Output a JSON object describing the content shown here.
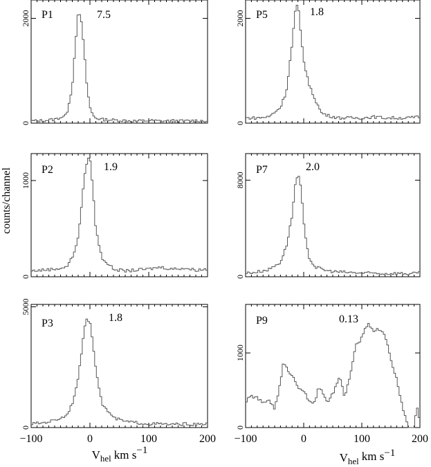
{
  "figure": {
    "ylabel": "counts/channel",
    "xlabel_main": "V",
    "xlabel_sub": "hel",
    "xlabel_units": "km s",
    "xlabel_exp": "−1"
  },
  "chart_data": [
    {
      "type": "line",
      "panel": "P1",
      "annotation": "7.5",
      "xlim": [
        -100,
        200
      ],
      "ylim": [
        0,
        2350
      ],
      "ytick_labels": [
        "0",
        "2000"
      ],
      "yticks": [
        0,
        2000
      ],
      "x": [
        -100,
        -80,
        -60,
        -40,
        -30,
        -25,
        -20,
        -15,
        -10,
        -5,
        0,
        5,
        10,
        20,
        40,
        60,
        80,
        100,
        120,
        140,
        160,
        180,
        200
      ],
      "y": [
        40,
        50,
        70,
        150,
        700,
        1500,
        2100,
        2000,
        1400,
        700,
        300,
        150,
        100,
        70,
        60,
        50,
        40,
        50,
        40,
        45,
        40,
        50,
        40
      ]
    },
    {
      "type": "line",
      "panel": "P5",
      "annotation": "1.8",
      "xlim": [
        -100,
        200
      ],
      "ylim": [
        0,
        2350
      ],
      "ytick_labels": [
        "0",
        "2000"
      ],
      "yticks": [
        0,
        2000
      ],
      "x": [
        -100,
        -80,
        -60,
        -40,
        -30,
        -20,
        -15,
        -10,
        -5,
        0,
        10,
        20,
        30,
        40,
        60,
        80,
        100,
        120,
        140,
        160,
        180,
        200
      ],
      "y": [
        100,
        100,
        120,
        300,
        600,
        1500,
        2100,
        2300,
        1700,
        1200,
        700,
        450,
        200,
        150,
        100,
        100,
        100,
        120,
        100,
        100,
        100,
        120
      ]
    },
    {
      "type": "line",
      "panel": "P2",
      "annotation": "1.9",
      "xlim": [
        -100,
        200
      ],
      "ylim": [
        0,
        1280
      ],
      "ytick_labels": [
        "0",
        "1000"
      ],
      "yticks": [
        0,
        1000
      ],
      "x": [
        -100,
        -80,
        -60,
        -40,
        -30,
        -20,
        -15,
        -10,
        -5,
        0,
        5,
        10,
        20,
        40,
        60,
        80,
        100,
        120,
        140,
        160,
        180,
        200
      ],
      "y": [
        60,
        70,
        80,
        100,
        200,
        400,
        700,
        1000,
        1200,
        1250,
        900,
        500,
        200,
        80,
        60,
        70,
        80,
        100,
        80,
        90,
        70,
        80
      ]
    },
    {
      "type": "line",
      "panel": "P7",
      "annotation": "2.0",
      "xlim": [
        -100,
        200
      ],
      "ylim": [
        0,
        10200
      ],
      "ytick_labels": [
        "0",
        "8000"
      ],
      "yticks": [
        0,
        8000
      ],
      "x": [
        -100,
        -80,
        -60,
        -40,
        -30,
        -20,
        -15,
        -10,
        -5,
        0,
        5,
        10,
        20,
        40,
        60,
        80,
        100,
        120,
        140,
        160,
        180,
        200
      ],
      "y": [
        300,
        400,
        600,
        1200,
        2500,
        5000,
        7500,
        8500,
        7500,
        4500,
        2500,
        1500,
        800,
        500,
        400,
        350,
        300,
        300,
        250,
        300,
        250,
        300
      ]
    },
    {
      "type": "line",
      "panel": "P3",
      "annotation": "1.8",
      "xlim": [
        -100,
        200
      ],
      "ylim": [
        0,
        5100
      ],
      "ytick_labels": [
        "0",
        "5000"
      ],
      "yticks": [
        0,
        5000
      ],
      "x": [
        -100,
        -80,
        -60,
        -40,
        -30,
        -20,
        -15,
        -10,
        -5,
        0,
        5,
        10,
        20,
        40,
        60,
        80,
        100,
        120,
        140,
        160,
        180,
        200
      ],
      "y": [
        150,
        200,
        300,
        500,
        1000,
        2000,
        3000,
        4000,
        4500,
        4400,
        3500,
        2500,
        1000,
        400,
        250,
        200,
        150,
        150,
        120,
        150,
        120,
        150
      ]
    },
    {
      "type": "line",
      "panel": "P9",
      "annotation": "0.13",
      "xlim": [
        -100,
        200
      ],
      "ylim": [
        0,
        1650
      ],
      "ytick_labels": [
        "0",
        "1000"
      ],
      "yticks": [
        0,
        1000
      ],
      "x": [
        -100,
        -90,
        -80,
        -70,
        -60,
        -50,
        -40,
        -35,
        -30,
        -20,
        -10,
        0,
        10,
        20,
        25,
        30,
        40,
        50,
        60,
        65,
        70,
        80,
        90,
        100,
        110,
        120,
        130,
        140,
        150,
        160,
        170,
        180,
        190,
        195,
        200
      ],
      "y": [
        350,
        420,
        400,
        320,
        380,
        250,
        600,
        870,
        800,
        700,
        550,
        500,
        330,
        350,
        550,
        500,
        330,
        450,
        650,
        620,
        400,
        700,
        1100,
        1200,
        1400,
        1300,
        1320,
        1250,
        900,
        650,
        280,
        0,
        0,
        300,
        50
      ]
    }
  ],
  "xtick_labels": [
    "−100",
    "0",
    "100",
    "200"
  ],
  "xticks": [
    -100,
    0,
    100,
    200
  ]
}
